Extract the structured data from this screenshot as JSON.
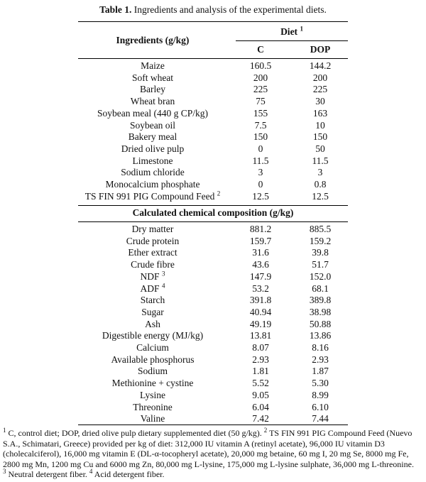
{
  "caption": {
    "label": "Table 1.",
    "text": "Ingredients and analysis of the experimental diets."
  },
  "header": {
    "ingredients": "Ingredients (g/kg)",
    "diet": "Diet",
    "diet_sup": "1",
    "col_c": "C",
    "col_dop": "DOP"
  },
  "ingredients": [
    {
      "name": "Maize",
      "sup": "",
      "c": "160.5",
      "dop": "144.2"
    },
    {
      "name": "Soft wheat",
      "sup": "",
      "c": "200",
      "dop": "200"
    },
    {
      "name": "Barley",
      "sup": "",
      "c": "225",
      "dop": "225"
    },
    {
      "name": "Wheat bran",
      "sup": "",
      "c": "75",
      "dop": "30"
    },
    {
      "name": "Soybean meal (440 g CP/kg)",
      "sup": "",
      "c": "155",
      "dop": "163"
    },
    {
      "name": "Soybean oil",
      "sup": "",
      "c": "7.5",
      "dop": "10"
    },
    {
      "name": "Bakery meal",
      "sup": "",
      "c": "150",
      "dop": "150"
    },
    {
      "name": "Dried olive pulp",
      "sup": "",
      "c": "0",
      "dop": "50"
    },
    {
      "name": "Limestone",
      "sup": "",
      "c": "11.5",
      "dop": "11.5"
    },
    {
      "name": "Sodium chloride",
      "sup": "",
      "c": "3",
      "dop": "3"
    },
    {
      "name": "Monocalcium phosphate",
      "sup": "",
      "c": "0",
      "dop": "0.8"
    },
    {
      "name": "TS FIN 991 PIG Compound Feed",
      "sup": "2",
      "c": "12.5",
      "dop": "12.5"
    }
  ],
  "section2_title": "Calculated chemical composition (g/kg)",
  "composition": [
    {
      "name": "Dry matter",
      "sup": "",
      "c": "881.2",
      "dop": "885.5"
    },
    {
      "name": "Crude protein",
      "sup": "",
      "c": "159.7",
      "dop": "159.2"
    },
    {
      "name": "Ether extract",
      "sup": "",
      "c": "31.6",
      "dop": "39.8"
    },
    {
      "name": "Crude fibre",
      "sup": "",
      "c": "43.6",
      "dop": "51.7"
    },
    {
      "name": "NDF",
      "sup": "3",
      "c": "147.9",
      "dop": "152.0"
    },
    {
      "name": "ADF",
      "sup": "4",
      "c": "53.2",
      "dop": "68.1"
    },
    {
      "name": "Starch",
      "sup": "",
      "c": "391.8",
      "dop": "389.8"
    },
    {
      "name": "Sugar",
      "sup": "",
      "c": "40.94",
      "dop": "38.98"
    },
    {
      "name": "Ash",
      "sup": "",
      "c": "49.19",
      "dop": "50.88"
    },
    {
      "name": "Digestible energy (MJ/kg)",
      "sup": "",
      "c": "13.81",
      "dop": "13.86"
    },
    {
      "name": "Calcium",
      "sup": "",
      "c": "8.07",
      "dop": "8.16"
    },
    {
      "name": "Available phosphorus",
      "sup": "",
      "c": "2.93",
      "dop": "2.93"
    },
    {
      "name": "Sodium",
      "sup": "",
      "c": "1.81",
      "dop": "1.87"
    },
    {
      "name": "Methionine + cystine",
      "sup": "",
      "c": "5.52",
      "dop": "5.30"
    },
    {
      "name": "Lysine",
      "sup": "",
      "c": "9.05",
      "dop": "8.99"
    },
    {
      "name": "Threonine",
      "sup": "",
      "c": "6.04",
      "dop": "6.10"
    },
    {
      "name": "Valine",
      "sup": "",
      "c": "7.42",
      "dop": "7.44"
    }
  ],
  "footnotes": {
    "n1_sup": "1",
    "n1": "C, control diet; DOP, dried olive pulp dietary supplemented diet (50 g/kg).",
    "n2_sup": "2",
    "n2": "TS FIN 991 PIG Compound Feed (Nuevo S.A., Schimatari, Greece) provided per kg of diet: 312,000 IU vitamin A (retinyl acetate), 96,000 IU vitamin D3 (cholecalciferol), 16,000 mg vitamin E (DL-α-tocopheryl acetate), 20,000 mg betaine, 60 mg I, 20 mg Se, 8000 mg Fe, 2800 mg Mn, 1200 mg Cu and 6000 mg Zn, 80,000 mg L-lysine, 175,000 mg L-lysine sulphate, 36,000 mg L-threonine.",
    "n3_sup": "3",
    "n3": "Neutral detergent fiber.",
    "n4_sup": "4",
    "n4": "Acid detergent fiber."
  }
}
